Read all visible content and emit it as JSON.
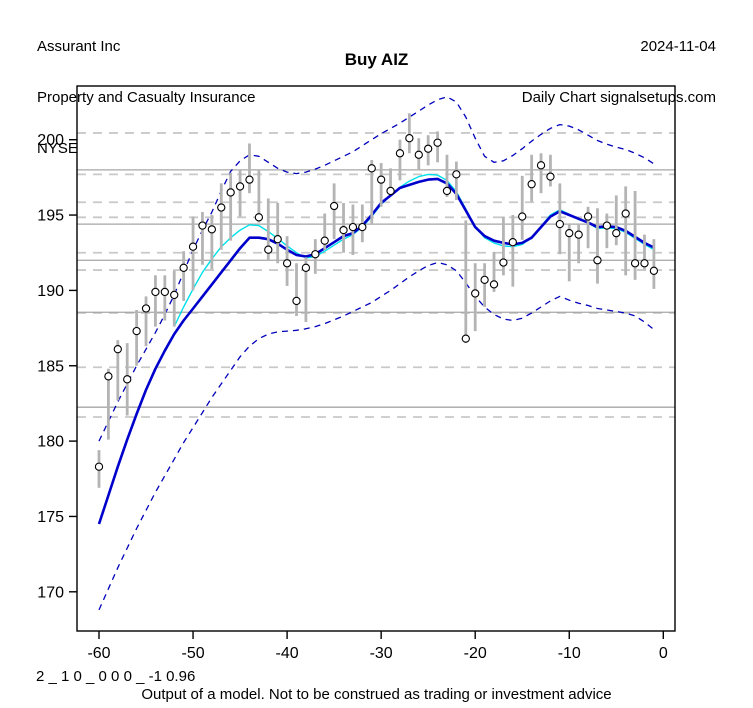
{
  "header": {
    "company": "Assurant Inc",
    "industry": "Property and Casualty Insurance",
    "exchange": "NYSE",
    "date": "2024-11-04",
    "source": "Daily Chart signalsetups.com"
  },
  "footer": {
    "model_code": "2 _ 1 0 _ 0 0 0 _ -1 0.96",
    "disclaimer": "Output of a model. Not to be construed as trading or investment advice"
  },
  "chart_data": {
    "type": "hlc-bar",
    "title": "Buy AIZ",
    "xlabel": "",
    "ylabel": "",
    "x_ticks": [
      -60,
      -50,
      -40,
      -30,
      -20,
      -10,
      0
    ],
    "y_ticks": [
      170,
      175,
      180,
      185,
      190,
      195,
      200
    ],
    "xlim": [
      -62,
      1
    ],
    "ylim": [
      167.4,
      203.6
    ],
    "grid": {
      "solid_levels": [
        198.0,
        194.4,
        192.0,
        188.55,
        182.25
      ],
      "dashed_levels": [
        200.45,
        197.7,
        195.85,
        194.85,
        192.5,
        191.35,
        188.5,
        184.9,
        181.6
      ]
    },
    "bars": {
      "t_start": -60,
      "high": [
        179.4,
        184.8,
        186.7,
        186.5,
        188.7,
        189.6,
        191.0,
        191.0,
        191.3,
        192.6,
        194.9,
        195.2,
        195.0,
        197.1,
        197.8,
        198.0,
        199.75,
        198.0,
        196.1,
        195.8,
        193.6,
        191.8,
        192.2,
        193.4,
        195.1,
        197.1,
        195.8,
        195.7,
        195.7,
        198.65,
        198.45,
        198.1,
        200.0,
        201.75,
        200.1,
        200.3,
        200.55,
        199.0,
        198.55,
        194.65,
        191.8,
        191.8,
        192.55,
        194.9,
        195.0,
        197.6,
        199.0,
        199.1,
        199.0,
        197.1,
        194.45,
        194.35,
        195.55,
        195.45,
        195.1,
        196.3,
        196.9,
        196.6,
        193.7,
        193.4
      ],
      "low": [
        176.9,
        180.1,
        182.7,
        181.7,
        185.0,
        186.3,
        187.6,
        188.0,
        187.6,
        189.3,
        190.0,
        191.7,
        191.4,
        192.7,
        193.3,
        194.9,
        196.45,
        194.5,
        192.0,
        191.8,
        190.3,
        188.3,
        187.9,
        191.1,
        192.7,
        193.4,
        192.5,
        192.35,
        193.2,
        194.45,
        195.55,
        196.4,
        197.3,
        199.1,
        197.95,
        198.3,
        198.5,
        196.2,
        196.0,
        186.5,
        187.3,
        188.9,
        189.9,
        191.0,
        190.25,
        193.35,
        195.9,
        196.45,
        196.9,
        192.4,
        190.6,
        191.8,
        192.8,
        190.45,
        192.8,
        193.0,
        191.0,
        190.7,
        191.4,
        190.1
      ],
      "close": [
        178.3,
        184.3,
        186.1,
        184.1,
        187.3,
        188.8,
        189.9,
        189.9,
        189.7,
        191.5,
        192.9,
        194.3,
        194.05,
        195.5,
        196.5,
        196.9,
        197.35,
        194.85,
        192.7,
        193.4,
        191.8,
        189.3,
        191.5,
        192.4,
        193.3,
        195.6,
        194.0,
        194.2,
        194.2,
        198.1,
        197.35,
        196.6,
        199.1,
        200.1,
        199.0,
        199.4,
        199.8,
        196.6,
        197.7,
        186.8,
        189.8,
        190.7,
        190.4,
        191.85,
        193.2,
        194.9,
        197.05,
        198.3,
        197.55,
        194.4,
        193.8,
        193.7,
        194.9,
        192.0,
        194.3,
        193.8,
        195.1,
        191.8,
        191.8,
        191.3
      ]
    },
    "series": [
      {
        "name": "slow-average",
        "color": "#0000cc",
        "style": "solid",
        "width": 2.6,
        "t_start": -60,
        "values": [
          174.5,
          176.4,
          178.3,
          180.1,
          181.8,
          183.4,
          184.8,
          186.0,
          187.1,
          188.0,
          188.8,
          189.6,
          190.4,
          191.2,
          192.0,
          192.8,
          193.5,
          193.5,
          193.4,
          193.1,
          192.7,
          192.35,
          192.25,
          192.4,
          192.8,
          193.2,
          193.6,
          193.8,
          194.3,
          195.0,
          195.8,
          196.3,
          196.8,
          197.0,
          197.2,
          197.35,
          197.4,
          197.1,
          196.4,
          195.3,
          194.2,
          193.6,
          193.3,
          193.15,
          193.05,
          193.15,
          193.5,
          194.2,
          194.9,
          195.25,
          195.0,
          194.75,
          194.5,
          194.2,
          194.25,
          194.2,
          193.95,
          193.55,
          193.15,
          192.85
        ]
      },
      {
        "name": "fast-average",
        "color": "#00e0ea",
        "style": "solid",
        "width": 1.4,
        "t_start": -52,
        "values": [
          187.6,
          188.9,
          190.1,
          191.2,
          192.1,
          192.9,
          193.5,
          194.0,
          194.35,
          194.3,
          193.9,
          193.45,
          192.95,
          192.5,
          192.15,
          192.25,
          192.6,
          193.0,
          193.4,
          193.7,
          194.2,
          194.9,
          195.7,
          196.3,
          196.85,
          197.25,
          197.55,
          197.7,
          197.65,
          197.3,
          196.55,
          195.4,
          194.2,
          193.5,
          193.15,
          192.95,
          192.9,
          193.05,
          193.5,
          194.25,
          195.0,
          195.35,
          195.05,
          194.7,
          194.5,
          194.1,
          194.15,
          194.1,
          193.85,
          193.45,
          193.05,
          192.7
        ]
      },
      {
        "name": "upper-band",
        "color": "#0000bb",
        "style": "dashed",
        "width": 1.3,
        "t_start": -60,
        "values": [
          180.0,
          181.3,
          182.6,
          183.8,
          185.0,
          186.1,
          187.2,
          188.4,
          189.7,
          191.2,
          192.7,
          194.0,
          195.2,
          196.6,
          197.9,
          198.6,
          199.0,
          198.9,
          198.5,
          198.1,
          197.85,
          197.75,
          197.85,
          198.05,
          198.3,
          198.6,
          198.9,
          199.2,
          199.6,
          200.0,
          200.4,
          200.75,
          201.1,
          201.5,
          201.9,
          202.3,
          202.65,
          202.85,
          202.5,
          201.5,
          200.1,
          198.9,
          198.5,
          198.6,
          198.95,
          199.4,
          199.9,
          200.35,
          200.75,
          201.0,
          200.9,
          200.65,
          200.3,
          199.95,
          199.7,
          199.5,
          199.35,
          199.1,
          198.8,
          198.4
        ]
      },
      {
        "name": "lower-band",
        "color": "#0000bb",
        "style": "dashed",
        "width": 1.3,
        "t_start": -60,
        "values": [
          168.8,
          170.2,
          171.6,
          172.9,
          174.2,
          175.4,
          176.6,
          177.7,
          178.8,
          179.9,
          180.9,
          181.9,
          182.9,
          183.8,
          184.7,
          185.6,
          186.3,
          186.8,
          187.1,
          187.25,
          187.3,
          187.35,
          187.45,
          187.6,
          187.8,
          188.05,
          188.3,
          188.6,
          188.9,
          189.2,
          189.6,
          190.0,
          190.45,
          190.9,
          191.3,
          191.65,
          191.85,
          191.7,
          191.3,
          190.5,
          189.6,
          188.9,
          188.4,
          188.1,
          188.0,
          188.15,
          188.5,
          188.9,
          189.3,
          189.6,
          189.35,
          189.15,
          189.0,
          188.8,
          188.7,
          188.6,
          188.5,
          188.3,
          187.9,
          187.4
        ]
      }
    ],
    "colors": {
      "bar": "#b4b4b4",
      "close_marker_stroke": "#000000",
      "close_marker_fill": "#ffffff",
      "grid_solid": "#a6a6a6",
      "grid_dashed": "#c9c9c9",
      "box": "#000000"
    },
    "legend": "none",
    "grid_on": true
  }
}
